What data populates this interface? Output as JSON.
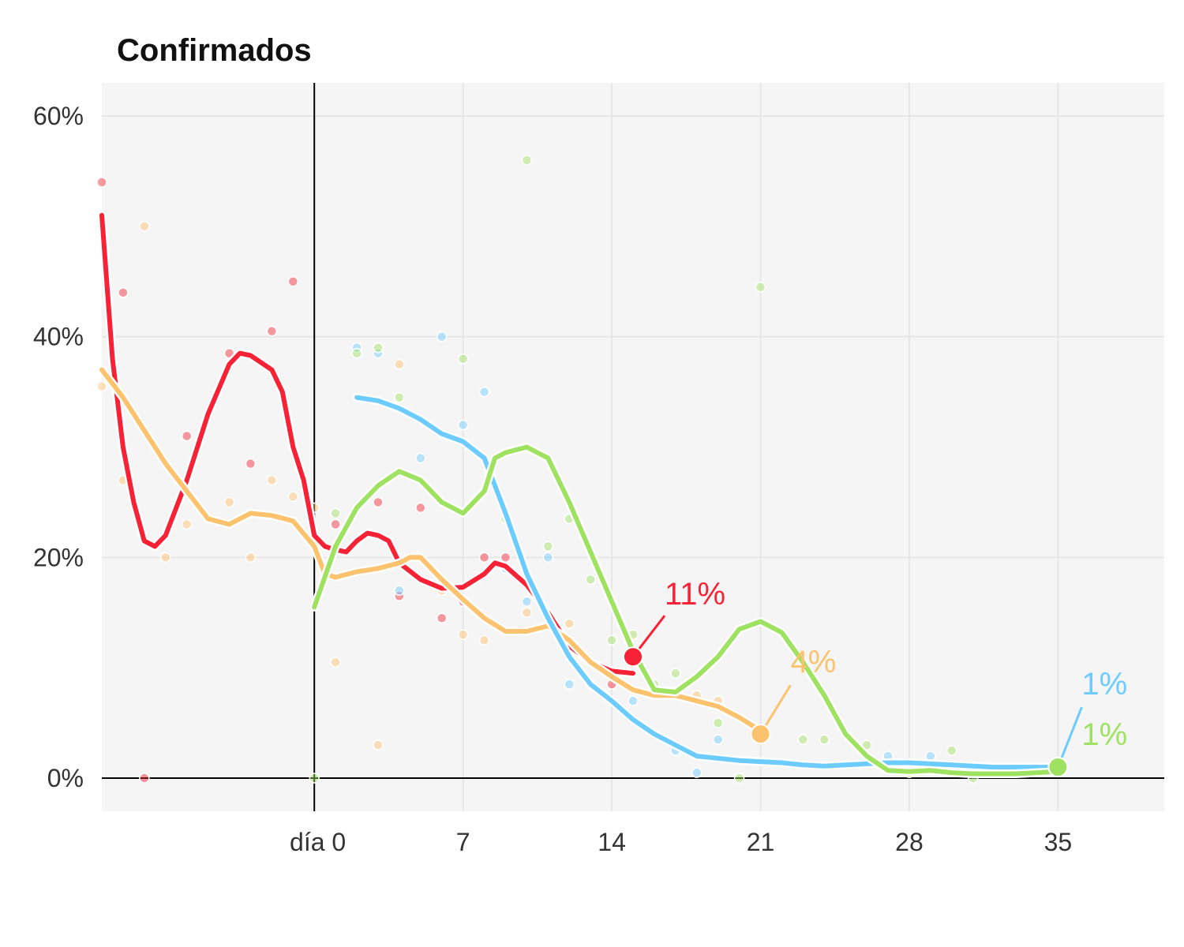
{
  "chart_data": {
    "type": "line",
    "title": "Confirmados",
    "xlabel": "",
    "ylabel": "",
    "xlim": [
      -10,
      40
    ],
    "ylim": [
      -3,
      63
    ],
    "x_ticks": [
      {
        "value": 0,
        "label": "día 0"
      },
      {
        "value": 7,
        "label": "7"
      },
      {
        "value": 14,
        "label": "14"
      },
      {
        "value": 21,
        "label": "21"
      },
      {
        "value": 28,
        "label": "28"
      },
      {
        "value": 35,
        "label": "35"
      }
    ],
    "y_ticks": [
      {
        "value": 0,
        "label": "0%"
      },
      {
        "value": 20,
        "label": "20%"
      },
      {
        "value": 40,
        "label": "40%"
      },
      {
        "value": 60,
        "label": "60%"
      }
    ],
    "grid": true,
    "series": [
      {
        "color": "#f72236",
        "end_label": "11%",
        "end_point": [
          15,
          11
        ],
        "trend": [
          [
            -10,
            51
          ],
          [
            -9.5,
            38
          ],
          [
            -9,
            30
          ],
          [
            -8.5,
            25
          ],
          [
            -8,
            21.5
          ],
          [
            -7.5,
            21
          ],
          [
            -7,
            22
          ],
          [
            -6,
            27
          ],
          [
            -5,
            33
          ],
          [
            -4,
            37.5
          ],
          [
            -3.5,
            38.5
          ],
          [
            -3,
            38.3
          ],
          [
            -2,
            37
          ],
          [
            -1.5,
            35
          ],
          [
            -1,
            30
          ],
          [
            -0.5,
            27
          ],
          [
            0,
            22
          ],
          [
            0.5,
            21
          ],
          [
            1,
            20.7
          ],
          [
            1.5,
            20.5
          ],
          [
            2,
            21.5
          ],
          [
            2.5,
            22.2
          ],
          [
            3,
            22
          ],
          [
            3.5,
            21.5
          ],
          [
            4,
            19.5
          ],
          [
            5,
            18
          ],
          [
            6,
            17.2
          ],
          [
            7,
            17.3
          ],
          [
            8,
            18.5
          ],
          [
            8.5,
            19.5
          ],
          [
            9,
            19.2
          ],
          [
            10,
            17.5
          ],
          [
            11,
            15
          ],
          [
            12,
            12
          ],
          [
            13,
            10.5
          ],
          [
            14,
            9.7
          ],
          [
            15,
            9.5
          ]
        ],
        "points": [
          [
            -10,
            54
          ],
          [
            -9,
            44
          ],
          [
            -8,
            0
          ],
          [
            -6,
            31
          ],
          [
            -4,
            38.5
          ],
          [
            -3,
            28.5
          ],
          [
            -2,
            40.5
          ],
          [
            -1,
            45
          ],
          [
            1,
            23
          ],
          [
            3,
            25
          ],
          [
            4,
            16.5
          ],
          [
            5,
            24.5
          ],
          [
            6,
            14.5
          ],
          [
            7,
            16
          ],
          [
            8,
            20
          ],
          [
            9,
            20
          ],
          [
            14,
            8.5
          ]
        ]
      },
      {
        "color": "#fdc26d",
        "end_label": "4%",
        "end_point": [
          21,
          4
        ],
        "trend": [
          [
            -10,
            37
          ],
          [
            -9,
            34.5
          ],
          [
            -8,
            31.5
          ],
          [
            -7,
            28.5
          ],
          [
            -6,
            26
          ],
          [
            -5,
            23.5
          ],
          [
            -4,
            23
          ],
          [
            -3,
            24
          ],
          [
            -2,
            23.8
          ],
          [
            -1,
            23.3
          ],
          [
            0,
            21
          ],
          [
            0.5,
            18.5
          ],
          [
            1,
            18.2
          ],
          [
            2,
            18.7
          ],
          [
            3,
            19
          ],
          [
            4,
            19.5
          ],
          [
            4.5,
            20
          ],
          [
            5,
            20
          ],
          [
            6,
            18
          ],
          [
            7,
            16.2
          ],
          [
            8,
            14.5
          ],
          [
            9,
            13.3
          ],
          [
            10,
            13.3
          ],
          [
            11,
            13.8
          ],
          [
            12,
            12.5
          ],
          [
            13,
            10.5
          ],
          [
            14,
            9.2
          ],
          [
            15,
            8
          ],
          [
            16,
            7.5
          ],
          [
            17,
            7.5
          ],
          [
            18,
            7
          ],
          [
            19,
            6.5
          ],
          [
            20,
            5.5
          ],
          [
            21,
            4.3
          ]
        ],
        "points": [
          [
            -10,
            35.5
          ],
          [
            -9,
            27
          ],
          [
            -8,
            50
          ],
          [
            -7,
            20
          ],
          [
            -6,
            23
          ],
          [
            -4,
            25
          ],
          [
            -3,
            20
          ],
          [
            -2,
            27
          ],
          [
            -1,
            25.5
          ],
          [
            0,
            24.5
          ],
          [
            1,
            10.5
          ],
          [
            3,
            3
          ],
          [
            4,
            37.5
          ],
          [
            6,
            17
          ],
          [
            7,
            13
          ],
          [
            8,
            12.5
          ],
          [
            10,
            15
          ],
          [
            12,
            14
          ],
          [
            15,
            11
          ],
          [
            18,
            7.5
          ],
          [
            19,
            7
          ]
        ]
      },
      {
        "color": "#6ccbff",
        "end_label": "1%",
        "end_point": [
          35,
          1
        ],
        "trend": [
          [
            2,
            34.5
          ],
          [
            3,
            34.2
          ],
          [
            4,
            33.5
          ],
          [
            5,
            32.5
          ],
          [
            6,
            31.2
          ],
          [
            7,
            30.5
          ],
          [
            8,
            29
          ],
          [
            9,
            24
          ],
          [
            10,
            18.5
          ],
          [
            11,
            14.5
          ],
          [
            12,
            11
          ],
          [
            13,
            8.5
          ],
          [
            14,
            7
          ],
          [
            15,
            5.3
          ],
          [
            16,
            4
          ],
          [
            17,
            3
          ],
          [
            18,
            2
          ],
          [
            19,
            1.8
          ],
          [
            20,
            1.6
          ],
          [
            21,
            1.5
          ],
          [
            22,
            1.4
          ],
          [
            23,
            1.2
          ],
          [
            24,
            1.1
          ],
          [
            25,
            1.2
          ],
          [
            26,
            1.3
          ],
          [
            27,
            1.4
          ],
          [
            28,
            1.4
          ],
          [
            29,
            1.3
          ],
          [
            30,
            1.2
          ],
          [
            31,
            1.1
          ],
          [
            32,
            1
          ],
          [
            33,
            1
          ],
          [
            34,
            1
          ],
          [
            35,
            1
          ]
        ],
        "points": [
          [
            2,
            39
          ],
          [
            3,
            38.5
          ],
          [
            4,
            17
          ],
          [
            5,
            29
          ],
          [
            6,
            40
          ],
          [
            7,
            32
          ],
          [
            8,
            35
          ],
          [
            9,
            19
          ],
          [
            10,
            16
          ],
          [
            11,
            20
          ],
          [
            12,
            8.5
          ],
          [
            13,
            8.5
          ],
          [
            15,
            7
          ],
          [
            17,
            2.5
          ],
          [
            18,
            0.5
          ],
          [
            19,
            3.5
          ],
          [
            27,
            2
          ],
          [
            29,
            2
          ]
        ]
      },
      {
        "color": "#9fe262",
        "end_label": "1%",
        "end_point": [
          35,
          1
        ],
        "trend": [
          [
            0,
            15.5
          ],
          [
            1,
            21
          ],
          [
            2,
            24.5
          ],
          [
            3,
            26.5
          ],
          [
            4,
            27.8
          ],
          [
            5,
            27
          ],
          [
            6,
            25
          ],
          [
            7,
            24
          ],
          [
            8,
            26
          ],
          [
            8.5,
            29
          ],
          [
            9,
            29.5
          ],
          [
            10,
            30
          ],
          [
            11,
            29
          ],
          [
            12,
            25
          ],
          [
            13,
            20.5
          ],
          [
            14,
            16
          ],
          [
            15,
            11.5
          ],
          [
            16,
            8
          ],
          [
            17,
            7.8
          ],
          [
            18,
            9.2
          ],
          [
            19,
            11
          ],
          [
            20,
            13.5
          ],
          [
            21,
            14.2
          ],
          [
            22,
            13.2
          ],
          [
            23,
            10.5
          ],
          [
            24,
            7.5
          ],
          [
            25,
            4
          ],
          [
            26,
            2
          ],
          [
            27,
            0.7
          ],
          [
            28,
            0.6
          ],
          [
            29,
            0.7
          ],
          [
            30,
            0.5
          ],
          [
            31,
            0.4
          ],
          [
            32,
            0.4
          ],
          [
            33,
            0.4
          ],
          [
            34,
            0.5
          ],
          [
            35,
            0.6
          ]
        ],
        "points": [
          [
            0,
            0
          ],
          [
            1,
            24
          ],
          [
            2,
            38.5
          ],
          [
            3,
            39
          ],
          [
            4,
            34.5
          ],
          [
            7,
            38
          ],
          [
            9,
            23.5
          ],
          [
            10,
            56
          ],
          [
            11,
            21
          ],
          [
            12,
            23.5
          ],
          [
            13,
            18
          ],
          [
            14,
            12.5
          ],
          [
            15,
            13
          ],
          [
            16,
            8.5
          ],
          [
            17,
            9.5
          ],
          [
            19,
            5
          ],
          [
            20,
            0
          ],
          [
            21,
            44.5
          ],
          [
            23,
            3.5
          ],
          [
            24,
            3.5
          ],
          [
            26,
            3
          ],
          [
            28,
            0.5
          ],
          [
            30,
            2.5
          ],
          [
            31,
            0
          ]
        ]
      }
    ]
  }
}
